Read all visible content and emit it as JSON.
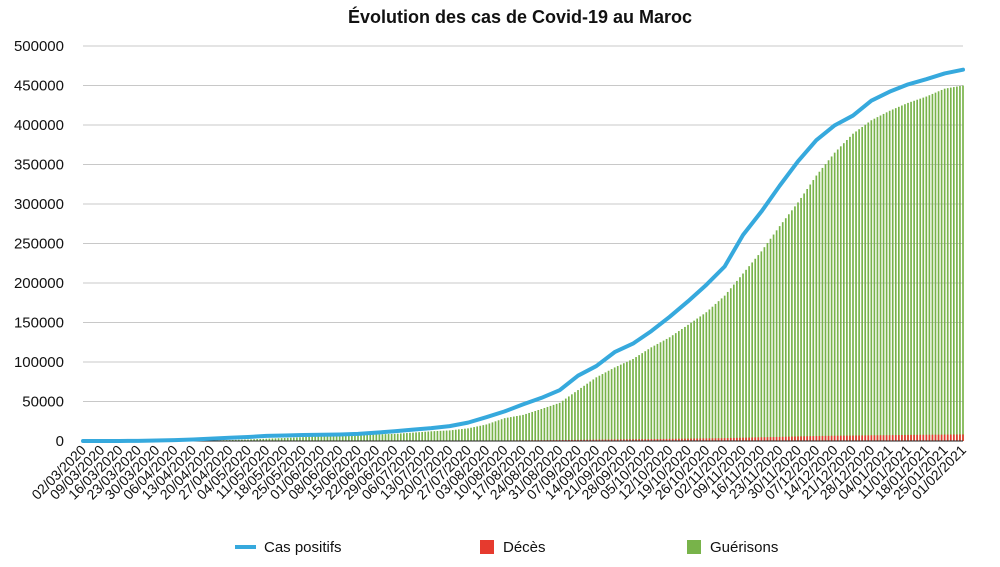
{
  "chart_data": {
    "type": "bar+line",
    "title": "Évolution des cas de Covid-19 au Maroc",
    "xlabel": "",
    "ylabel": "",
    "ylim": [
      0,
      500000
    ],
    "yticks": [
      0,
      50000,
      100000,
      150000,
      200000,
      250000,
      300000,
      350000,
      400000,
      450000,
      500000
    ],
    "grid": true,
    "legend_position": "bottom",
    "x_tick_labels": [
      "02/03/2020",
      "09/03/2020",
      "16/03/2020",
      "23/03/2020",
      "30/03/2020",
      "06/04/2020",
      "13/04/2020",
      "20/04/2020",
      "27/04/2020",
      "04/05/2020",
      "11/05/2020",
      "18/05/2020",
      "25/05/2020",
      "01/06/2020",
      "08/06/2020",
      "15/06/2020",
      "22/06/2020",
      "29/06/2020",
      "06/07/2020",
      "13/07/2020",
      "20/07/2020",
      "27/07/2020",
      "03/08/2020",
      "10/08/2020",
      "17/08/2020",
      "24/08/2020",
      "31/08/2020",
      "07/09/2020",
      "14/09/2020",
      "21/09/2020",
      "28/09/2020",
      "05/10/2020",
      "12/10/2020",
      "19/10/2020",
      "26/10/2020",
      "02/11/2020",
      "09/11/2020",
      "16/11/2020",
      "23/11/2020",
      "30/11/2020",
      "07/12/2020",
      "14/12/2020",
      "21/12/2020",
      "28/12/2020",
      "04/01/2021",
      "11/01/2021",
      "18/01/2021",
      "25/01/2021",
      "01/02/2021"
    ],
    "series": [
      {
        "name": "Cas positifs",
        "type": "line",
        "color": "#36a9dd",
        "values": [
          1,
          2,
          40,
          150,
          560,
          1120,
          1890,
          3040,
          4120,
          5050,
          6420,
          7020,
          7530,
          7870,
          8300,
          9070,
          10600,
          12290,
          14400,
          16260,
          18830,
          23260,
          30160,
          37530,
          46330,
          54530,
          64320,
          82680,
          94830,
          112520,
          123280,
          139120,
          157200,
          176800,
          197670,
          220900,
          260720,
          290310,
          323120,
          354070,
          380840,
          399560,
          411950,
          430750,
          442190,
          451390,
          458020,
          465270,
          470000
        ]
      },
      {
        "name": "Décès",
        "type": "bar",
        "color": "#e63a2e",
        "values": [
          0,
          0,
          1,
          6,
          33,
          100,
          120,
          150,
          160,
          180,
          190,
          200,
          200,
          200,
          210,
          210,
          210,
          220,
          240,
          250,
          280,
          350,
          480,
          660,
          850,
          1000,
          1200,
          1400,
          1700,
          2000,
          2200,
          2400,
          2700,
          3000,
          3300,
          3600,
          4200,
          4700,
          5200,
          5800,
          6300,
          6700,
          6900,
          7200,
          7400,
          7700,
          7900,
          8100,
          8300
        ]
      },
      {
        "name": "Guérisons",
        "type": "bar",
        "color": "#78b34a",
        "values": [
          0,
          0,
          2,
          10,
          60,
          260,
          480,
          900,
          1200,
          1900,
          2900,
          3800,
          4900,
          6700,
          7300,
          7600,
          8400,
          9000,
          10600,
          12300,
          13400,
          16000,
          20900,
          28900,
          33000,
          40500,
          48300,
          64500,
          80600,
          93100,
          103800,
          118600,
          131300,
          147000,
          163000,
          184000,
          212000,
          240000,
          272000,
          302000,
          336000,
          365000,
          389000,
          406000,
          418000,
          428000,
          436000,
          446000,
          450000
        ]
      }
    ]
  }
}
